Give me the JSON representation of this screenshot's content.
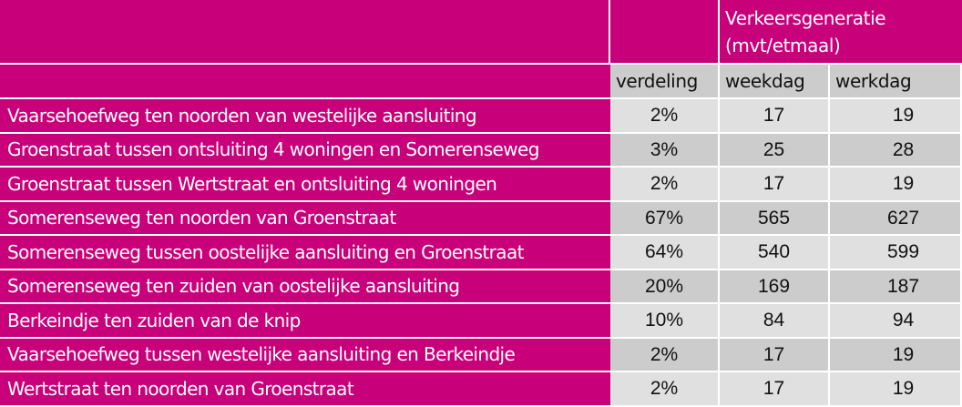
{
  "table": {
    "group_header": {
      "line1": "Verkeersgeneratie",
      "line2": "(mvt/etmaal)"
    },
    "columns": [
      {
        "key": "location",
        "label": ""
      },
      {
        "key": "verdeling",
        "label": "verdeling"
      },
      {
        "key": "weekdag",
        "label": "weekdag"
      },
      {
        "key": "werkdag",
        "label": "werkdag"
      }
    ],
    "rows": [
      {
        "location": "Vaarsehoefweg ten noorden van westelijke aansluiting",
        "verdeling": "2%",
        "weekdag": "17",
        "werkdag": "19"
      },
      {
        "location": "Groenstraat tussen ontsluiting 4 woningen en Somerenseweg",
        "verdeling": "3%",
        "weekdag": "25",
        "werkdag": "28"
      },
      {
        "location": "Groenstraat tussen Wertstraat en ontsluiting 4 woningen",
        "verdeling": "2%",
        "weekdag": "17",
        "werkdag": "19"
      },
      {
        "location": "Somerenseweg ten noorden van Groenstraat",
        "verdeling": "67%",
        "weekdag": "565",
        "werkdag": "627"
      },
      {
        "location": "Somerenseweg tussen oostelijke aansluiting  en Groenstraat",
        "verdeling": "64%",
        "weekdag": "540",
        "werkdag": "599"
      },
      {
        "location": "Somerenseweg ten zuiden van oostelijke aansluiting",
        "verdeling": "20%",
        "weekdag": "169",
        "werkdag": "187"
      },
      {
        "location": "Berkeindje ten zuiden van de knip",
        "verdeling": "10%",
        "weekdag": "84",
        "werkdag": "94"
      },
      {
        "location": "Vaarsehoefweg tussen westelijke aansluiting en Berkeindje",
        "verdeling": "2%",
        "weekdag": "17",
        "werkdag": "19"
      },
      {
        "location": "Wertstraat ten noorden van Groenstraat",
        "verdeling": "2%",
        "weekdag": "17",
        "werkdag": "19"
      }
    ]
  },
  "colors": {
    "header_magenta": "#C8007A",
    "row_dark": "#CCCCCC",
    "row_light": "#E0E0E0",
    "grid_line": "#FFFFFF"
  }
}
